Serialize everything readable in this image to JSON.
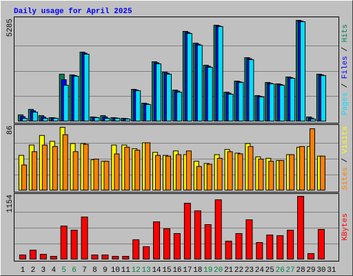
{
  "chart_data": {
    "type": "bar",
    "title": "Daily usage for April 2025",
    "title_color": "#0000ff",
    "categories": [
      "1",
      "2",
      "3",
      "4",
      "5",
      "6",
      "7",
      "8",
      "9",
      "10",
      "11",
      "12",
      "13",
      "14",
      "15",
      "16",
      "17",
      "18",
      "19",
      "20",
      "21",
      "22",
      "23",
      "24",
      "25",
      "26",
      "27",
      "28",
      "29",
      "30",
      "31"
    ],
    "category_colors": [
      "#000000",
      "#000000",
      "#000000",
      "#000000",
      "#008040",
      "#008040",
      "#000000",
      "#000000",
      "#000000",
      "#000000",
      "#000000",
      "#008040",
      "#008040",
      "#000000",
      "#000000",
      "#000000",
      "#000000",
      "#000000",
      "#008040",
      "#008040",
      "#000000",
      "#000000",
      "#000000",
      "#000000",
      "#000000",
      "#008040",
      "#008040",
      "#000000",
      "#000000",
      "#000000",
      "#000000"
    ],
    "grid": true,
    "legend_separator": " / ",
    "panels": [
      {
        "ylim": [
          0,
          5285
        ],
        "yticks": [
          5285
        ],
        "series": [
          {
            "name": "Hits",
            "color": "#00805c",
            "values": [
              360,
              647,
              324,
              216,
              2481,
              2445,
              3631,
              252,
              324,
              216,
              180,
              1690,
              971,
              3128,
              2588,
              1654,
              4710,
              4098,
              2948,
              5033,
              1546,
              2121,
              3343,
              1366,
              2049,
              1977,
              2337,
              5285,
              252,
              2481,
              0
            ]
          },
          {
            "name": "Files",
            "color": "#0000ff",
            "values": [
              270,
              575,
              252,
              198,
              2193,
              2409,
              3577,
              234,
              252,
              198,
              162,
              1654,
              935,
              3074,
              2534,
              1600,
              4656,
              4044,
              2894,
              4997,
              1492,
              2085,
              3290,
              1330,
              2013,
              1941,
              2301,
              5249,
              198,
              2445,
              0
            ]
          },
          {
            "name": "Pages",
            "color": "#00e0ff",
            "values": [
              180,
              503,
              180,
              180,
              1905,
              2373,
              3523,
              216,
              180,
              180,
              144,
              1618,
              899,
              3020,
              2481,
              1546,
              4602,
              3990,
              2840,
              4961,
              1438,
              2050,
              3236,
              1294,
              1977,
              1905,
              2265,
              5213,
              144,
              2409,
              0
            ]
          }
        ]
      },
      {
        "ylim": [
          0,
          86
        ],
        "yticks": [
          86
        ],
        "series": [
          {
            "name": "Visits",
            "color": "#ffff00",
            "values": [
              48,
              62,
              75,
              67,
              86,
              64,
              64,
              42,
              40,
              62,
              62,
              57,
              65,
              52,
              48,
              54,
              49,
              40,
              37,
              49,
              56,
              51,
              64,
              46,
              44,
              41,
              49,
              59,
              60,
              47,
              0
            ]
          },
          {
            "name": "Sites",
            "color": "#ff8000",
            "values": [
              35,
              53,
              62,
              60,
              76,
              53,
              63,
              43,
              40,
              50,
              59,
              55,
              65,
              48,
              47,
              49,
              54,
              33,
              36,
              44,
              53,
              50,
              60,
              43,
              40,
              41,
              49,
              60,
              84,
              47,
              0
            ]
          }
        ]
      },
      {
        "ylim": [
          0,
          1154
        ],
        "yticks": [
          1154
        ],
        "series": [
          {
            "name": "KBytes",
            "color": "#ff0000",
            "values": [
              88,
              176,
              100,
              63,
              614,
              539,
              778,
              88,
              88,
              63,
              63,
              364,
              238,
              690,
              564,
              477,
              1028,
              890,
              640,
              1091,
              339,
              477,
              727,
              314,
              451,
              439,
              539,
              1154,
              113,
              552,
              0
            ]
          }
        ]
      }
    ]
  }
}
